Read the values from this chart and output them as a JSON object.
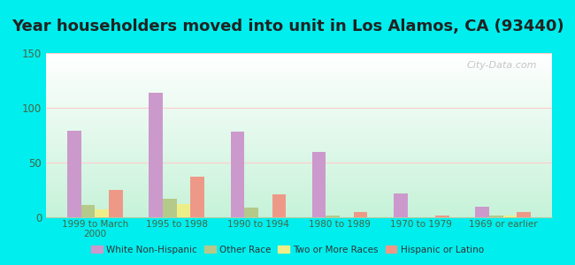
{
  "title": "Year householders moved into unit in Los Alamos, CA (93440)",
  "categories": [
    "1999 to March\n2000",
    "1995 to 1998",
    "1990 to 1994",
    "1980 to 1989",
    "1970 to 1979",
    "1969 or earlier"
  ],
  "series": {
    "White Non-Hispanic": [
      79,
      114,
      78,
      60,
      22,
      10
    ],
    "Other Race": [
      11,
      17,
      9,
      2,
      0,
      2
    ],
    "Two or More Races": [
      7,
      12,
      0,
      0,
      0,
      2
    ],
    "Hispanic or Latino": [
      25,
      37,
      21,
      5,
      2,
      5
    ]
  },
  "colors": {
    "White Non-Hispanic": "#cc99cc",
    "Other Race": "#b5c98a",
    "Two or More Races": "#eeee88",
    "Hispanic or Latino": "#ee9988"
  },
  "ylim": [
    0,
    150
  ],
  "yticks": [
    0,
    50,
    100,
    150
  ],
  "background_color": "#00eeee",
  "watermark": "City-Data.com",
  "bar_width": 0.17,
  "title_fontsize": 13
}
